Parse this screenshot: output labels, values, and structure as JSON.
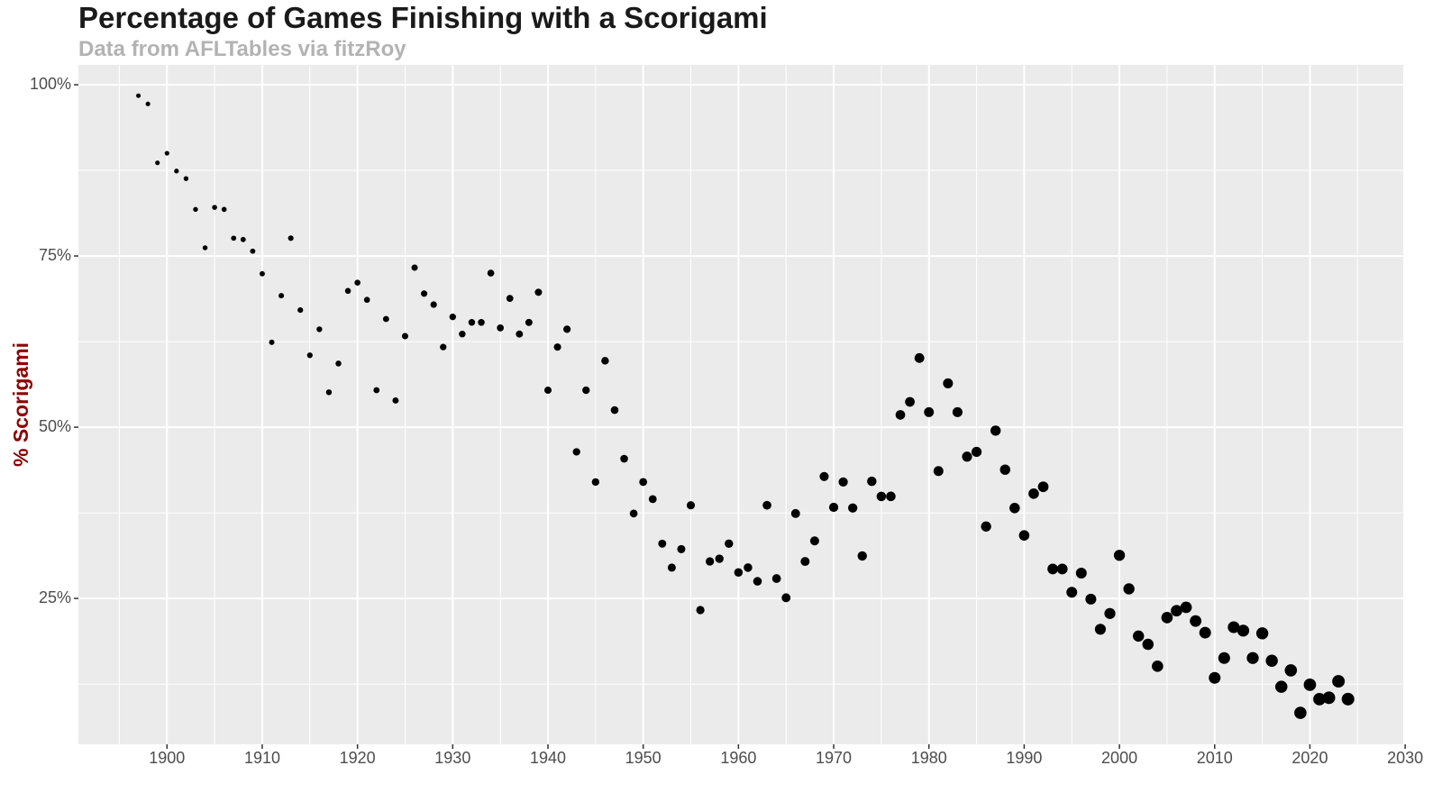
{
  "chart_data": {
    "type": "scatter",
    "title": "Percentage of Games Finishing with a Scorigami",
    "subtitle": "Data from AFLTables via fitzRoy",
    "y_label": "% Scorigami",
    "color": "#000000",
    "grid": true,
    "x": [
      1897,
      1898,
      1899,
      1900,
      1901,
      1902,
      1903,
      1904,
      1905,
      1906,
      1907,
      1908,
      1909,
      1910,
      1911,
      1912,
      1913,
      1914,
      1915,
      1916,
      1917,
      1918,
      1919,
      1920,
      1921,
      1922,
      1923,
      1924,
      1925,
      1926,
      1927,
      1928,
      1929,
      1930,
      1931,
      1932,
      1933,
      1934,
      1935,
      1936,
      1937,
      1938,
      1939,
      1940,
      1941,
      1942,
      1943,
      1944,
      1945,
      1946,
      1947,
      1948,
      1949,
      1950,
      1951,
      1952,
      1953,
      1954,
      1955,
      1956,
      1957,
      1958,
      1959,
      1960,
      1961,
      1962,
      1963,
      1964,
      1965,
      1966,
      1967,
      1968,
      1969,
      1970,
      1971,
      1972,
      1973,
      1974,
      1975,
      1976,
      1977,
      1978,
      1979,
      1980,
      1981,
      1982,
      1983,
      1984,
      1985,
      1986,
      1987,
      1988,
      1989,
      1990,
      1991,
      1992,
      1993,
      1994,
      1995,
      1996,
      1997,
      1998,
      1999,
      2000,
      2001,
      2002,
      2003,
      2004,
      2005,
      2006,
      2007,
      2008,
      2009,
      2010,
      2011,
      2012,
      2013,
      2014,
      2015,
      2016,
      2017,
      2018,
      2019,
      2020,
      2021,
      2022,
      2023,
      2024
    ],
    "values": [
      98.4,
      97.2,
      88.6,
      90.0,
      87.4,
      86.3,
      81.8,
      76.2,
      82.1,
      81.8,
      77.6,
      77.4,
      75.7,
      72.4,
      62.4,
      69.2,
      77.6,
      67.1,
      60.5,
      64.3,
      55.1,
      59.3,
      69.9,
      71.1,
      68.6,
      55.4,
      65.8,
      53.9,
      63.3,
      73.3,
      69.5,
      67.9,
      61.7,
      66.1,
      63.6,
      65.3,
      65.3,
      72.5,
      64.5,
      68.8,
      63.6,
      65.3,
      69.7,
      55.4,
      61.7,
      64.3,
      46.4,
      55.4,
      42.0,
      59.7,
      52.5,
      45.4,
      37.4,
      42.0,
      39.5,
      33.0,
      29.5,
      32.2,
      38.6,
      23.3,
      30.4,
      30.8,
      33.0,
      28.8,
      29.5,
      27.5,
      38.6,
      27.9,
      25.1,
      37.4,
      30.4,
      33.4,
      42.8,
      38.3,
      42.0,
      38.2,
      31.2,
      42.1,
      39.9,
      39.9,
      51.8,
      53.7,
      60.1,
      52.2,
      43.6,
      56.4,
      52.2,
      45.7,
      46.4,
      35.5,
      49.5,
      43.8,
      38.2,
      34.2,
      40.3,
      41.3,
      29.3,
      29.3,
      25.9,
      28.7,
      24.9,
      20.5,
      22.8,
      31.3,
      26.4,
      19.5,
      18.3,
      15.1,
      22.2,
      23.2,
      23.7,
      21.7,
      20.0,
      13.4,
      16.3,
      20.8,
      20.3,
      16.3,
      19.9,
      15.9,
      12.1,
      14.5,
      8.3,
      12.4,
      10.3,
      10.5,
      12.9,
      10.3
    ],
    "xlim": [
      1890.7,
      2029.8
    ],
    "xticks": [
      1900,
      1910,
      1920,
      1930,
      1940,
      1950,
      1960,
      1970,
      1980,
      1990,
      2000,
      2010,
      2020,
      2030
    ],
    "ylim": [
      3.7,
      102.9
    ],
    "yticks": [
      {
        "value": 25,
        "label": "25%"
      },
      {
        "value": 50,
        "label": "50%"
      },
      {
        "value": 75,
        "label": "75%"
      },
      {
        "value": 100,
        "label": "100%"
      }
    ]
  }
}
